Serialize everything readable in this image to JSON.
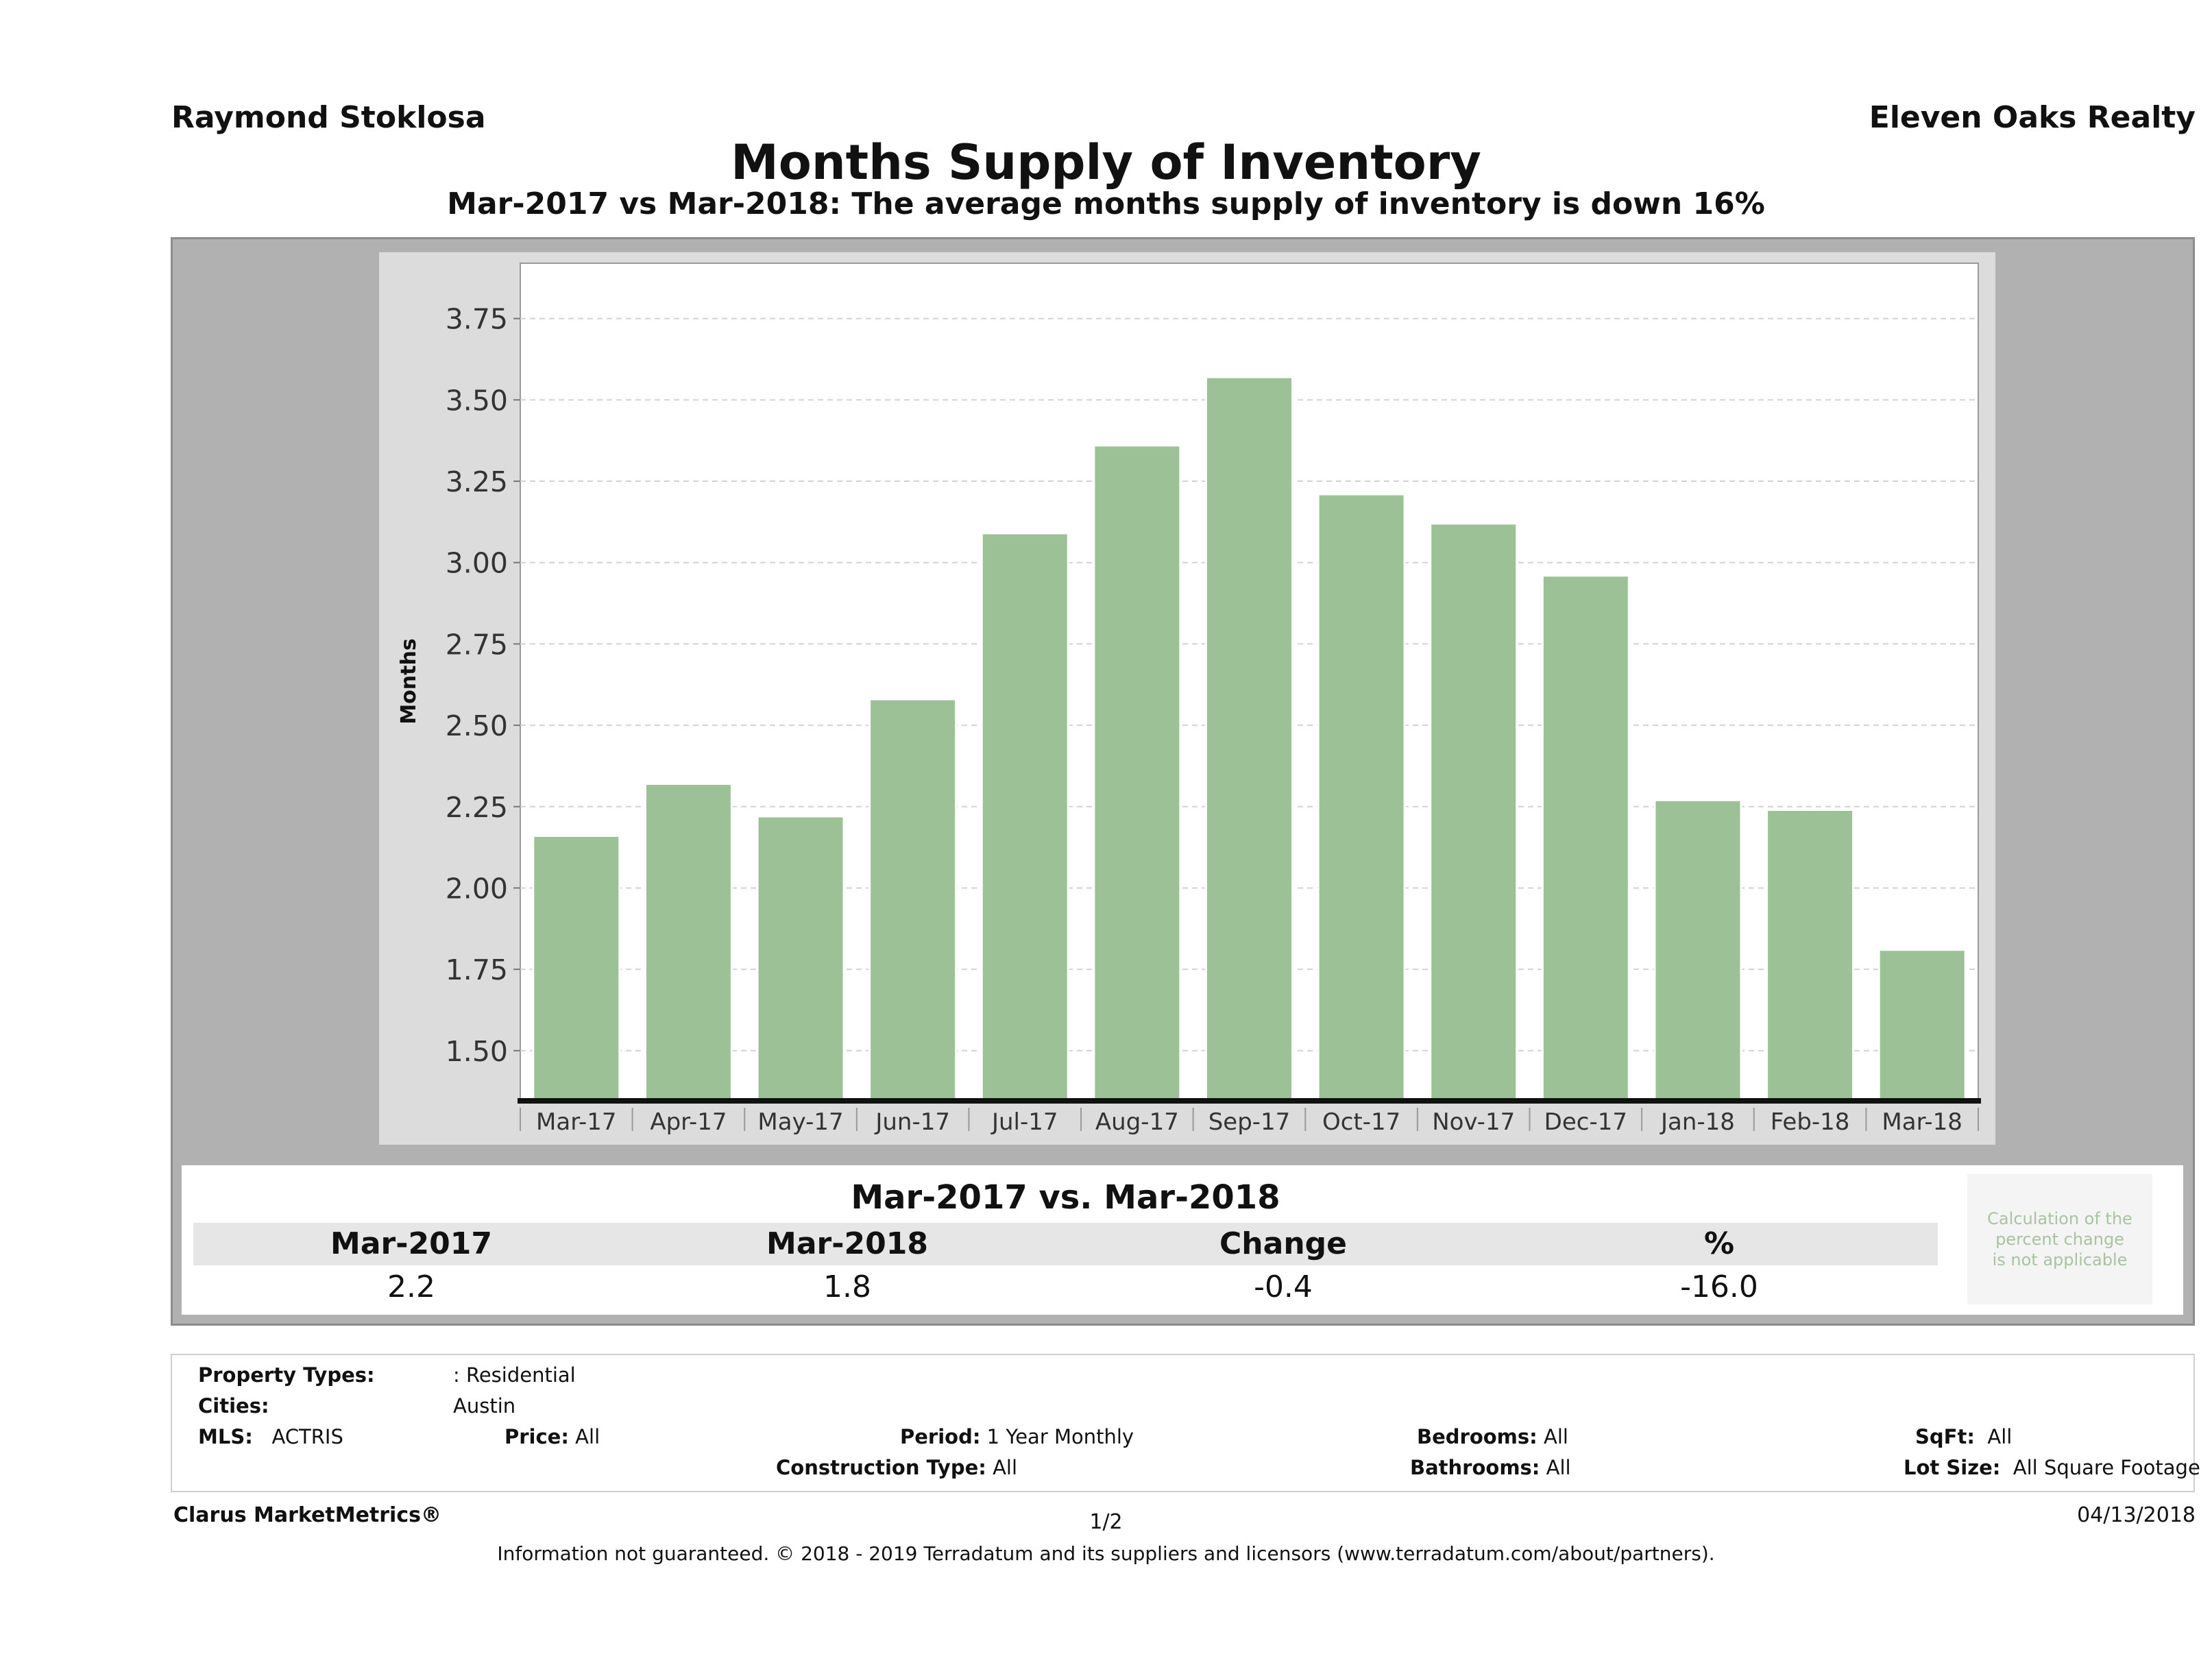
{
  "header": {
    "agent": "Raymond Stoklosa",
    "brokerage": "Eleven Oaks Realty",
    "title": "Months Supply of Inventory",
    "subtitle": "Mar-2017 vs Mar-2018: The average months supply of inventory is down 16%"
  },
  "chart_data": {
    "type": "bar",
    "categories": [
      "Mar-17",
      "Apr-17",
      "May-17",
      "Jun-17",
      "Jul-17",
      "Aug-17",
      "Sep-17",
      "Oct-17",
      "Nov-17",
      "Dec-17",
      "Jan-18",
      "Feb-18",
      "Mar-18"
    ],
    "values": [
      2.16,
      2.32,
      2.22,
      2.58,
      3.09,
      3.36,
      3.57,
      3.21,
      3.12,
      2.96,
      2.27,
      2.24,
      1.81
    ],
    "ylabel": "Months",
    "xlabel": "",
    "ylim": [
      1.35,
      3.92
    ],
    "yticks": [
      "1.50",
      "1.75",
      "2.00",
      "2.25",
      "2.50",
      "2.75",
      "3.00",
      "3.25",
      "3.50",
      "3.75"
    ],
    "bar_color": "#9cc197",
    "grid": true
  },
  "comparison": {
    "title": "Mar-2017 vs. Mar-2018",
    "headers": [
      "Mar-2017",
      "Mar-2018",
      "Change",
      "%"
    ],
    "values": [
      "2.2",
      "1.8",
      "-0.4",
      "-16.0"
    ],
    "note_lines": [
      "Calculation of the",
      "percent change",
      "is not applicable"
    ]
  },
  "filters": {
    "property_types_label": "Property Types:",
    "property_types_value": ": Residential",
    "cities_label": "Cities:",
    "cities_value": "Austin",
    "mls_label": "MLS:",
    "mls_value": "ACTRIS",
    "price_label": "Price:",
    "price_value": "All",
    "period_label": "Period:",
    "period_value": "1 Year Monthly",
    "construction_label": "Construction Type:",
    "construction_value": "All",
    "bedrooms_label": "Bedrooms:",
    "bedrooms_value": "All",
    "bathrooms_label": "Bathrooms:",
    "bathrooms_value": "All",
    "sqft_label": "SqFt:",
    "sqft_value": "All",
    "lotsize_label": "Lot Size:",
    "lotsize_value": "All Square Footage"
  },
  "footer": {
    "brand": "Clarus MarketMetrics®",
    "page": "1/2",
    "date": "04/13/2018",
    "disclaimer": "Information not guaranteed. © 2018 - 2019 Terradatum and its suppliers and licensors (www.terradatum.com/about/partners)."
  }
}
